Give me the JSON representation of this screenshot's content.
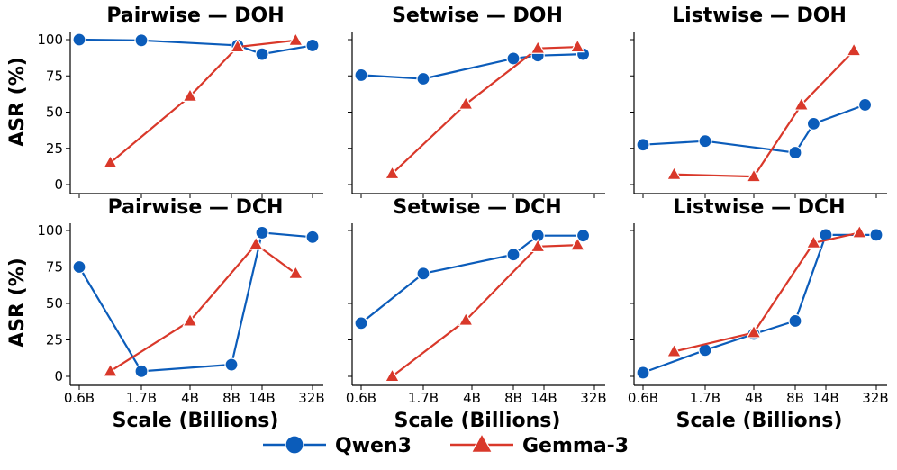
{
  "chart_data": {
    "type": "line",
    "ylabel": "ASR (%)",
    "xlabel": "Scale (Billions)",
    "x_categories": [
      "0.6B",
      "1.7B",
      "4B",
      "8B",
      "14B",
      "32B"
    ],
    "yticks": [
      0,
      25,
      50,
      75,
      100
    ],
    "ylim": [
      -4,
      106
    ],
    "grid": false,
    "legend_position": "bottom-center",
    "legend": [
      {
        "name": "Qwen3",
        "color": "#0b5cba",
        "marker": "circle"
      },
      {
        "name": "Gemma-3",
        "color": "#d9382a",
        "marker": "triangle"
      }
    ],
    "panels": [
      {
        "title": "Pairwise — DOH",
        "row": 0,
        "col": 0,
        "series": [
          {
            "name": "Qwen3",
            "points": [
              {
                "x": 0.0,
                "y": 100
              },
              {
                "x": 1.0,
                "y": 99.5
              },
              {
                "x": 2.6,
                "y": 96
              },
              {
                "x": 3.0,
                "y": 90
              },
              {
                "x": 3.9,
                "y": 96
              }
            ]
          },
          {
            "name": "Gemma-3",
            "points": [
              {
                "x": 0.5,
                "y": 15
              },
              {
                "x": 1.8,
                "y": 61
              },
              {
                "x": 2.6,
                "y": 95
              },
              {
                "x": 3.6,
                "y": 99.5
              }
            ]
          }
        ]
      },
      {
        "title": "Setwise — DOH",
        "row": 0,
        "col": 1,
        "series": [
          {
            "name": "Qwen3",
            "points": [
              {
                "x": 0.0,
                "y": 75.5
              },
              {
                "x": 1.0,
                "y": 73
              },
              {
                "x": 2.5,
                "y": 87
              },
              {
                "x": 2.9,
                "y": 89
              },
              {
                "x": 3.7,
                "y": 90
              }
            ]
          },
          {
            "name": "Gemma-3",
            "points": [
              {
                "x": 0.5,
                "y": 7.5
              },
              {
                "x": 1.7,
                "y": 55.5
              },
              {
                "x": 2.9,
                "y": 94
              },
              {
                "x": 3.6,
                "y": 95
              }
            ]
          }
        ]
      },
      {
        "title": "Listwise — DOH",
        "row": 0,
        "col": 2,
        "series": [
          {
            "name": "Qwen3",
            "points": [
              {
                "x": 0.0,
                "y": 27.5
              },
              {
                "x": 1.0,
                "y": 30
              },
              {
                "x": 2.5,
                "y": 22
              },
              {
                "x": 2.8,
                "y": 42
              },
              {
                "x": 3.7,
                "y": 55
              }
            ]
          },
          {
            "name": "Gemma-3",
            "points": [
              {
                "x": 0.5,
                "y": 7
              },
              {
                "x": 1.8,
                "y": 5.5
              },
              {
                "x": 2.6,
                "y": 55
              },
              {
                "x": 3.5,
                "y": 92.5
              }
            ]
          }
        ]
      },
      {
        "title": "Pairwise — DCH",
        "row": 1,
        "col": 0,
        "series": [
          {
            "name": "Qwen3",
            "points": [
              {
                "x": 0.0,
                "y": 75
              },
              {
                "x": 1.0,
                "y": 3.5
              },
              {
                "x": 2.5,
                "y": 8
              },
              {
                "x": 3.0,
                "y": 98.5
              },
              {
                "x": 3.9,
                "y": 95.5
              }
            ]
          },
          {
            "name": "Gemma-3",
            "points": [
              {
                "x": 0.5,
                "y": 3.5
              },
              {
                "x": 1.8,
                "y": 38
              },
              {
                "x": 2.9,
                "y": 90.5
              },
              {
                "x": 3.6,
                "y": 70.5
              }
            ]
          }
        ]
      },
      {
        "title": "Setwise — DCH",
        "row": 1,
        "col": 1,
        "series": [
          {
            "name": "Qwen3",
            "points": [
              {
                "x": 0.0,
                "y": 36.5
              },
              {
                "x": 1.0,
                "y": 70.5
              },
              {
                "x": 2.5,
                "y": 83.5
              },
              {
                "x": 2.9,
                "y": 96.5
              },
              {
                "x": 3.7,
                "y": 96.5
              }
            ]
          },
          {
            "name": "Gemma-3",
            "points": [
              {
                "x": 0.5,
                "y": 0
              },
              {
                "x": 1.7,
                "y": 38.5
              },
              {
                "x": 2.9,
                "y": 89
              },
              {
                "x": 3.6,
                "y": 90
              }
            ]
          }
        ]
      },
      {
        "title": "Listwise — DCH",
        "row": 1,
        "col": 2,
        "series": [
          {
            "name": "Qwen3",
            "points": [
              {
                "x": 0.0,
                "y": 2.5
              },
              {
                "x": 1.0,
                "y": 18
              },
              {
                "x": 1.8,
                "y": 29
              },
              {
                "x": 2.5,
                "y": 38
              },
              {
                "x": 3.0,
                "y": 97
              },
              {
                "x": 3.9,
                "y": 97
              }
            ]
          },
          {
            "name": "Gemma-3",
            "points": [
              {
                "x": 0.5,
                "y": 17
              },
              {
                "x": 1.8,
                "y": 30
              },
              {
                "x": 2.8,
                "y": 91.5
              },
              {
                "x": 3.6,
                "y": 98.5
              }
            ]
          }
        ]
      }
    ]
  }
}
